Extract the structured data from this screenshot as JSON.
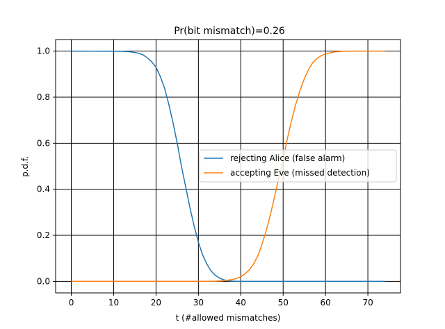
{
  "chart_data": {
    "type": "line",
    "title": "Pr(bit mismatch)=0.26",
    "xlabel": "t (#allowed mismatches)",
    "ylabel": "p.d.f.",
    "xlim": [
      -3.7,
      77.7
    ],
    "ylim": [
      -0.05,
      1.05
    ],
    "xticks": [
      0,
      10,
      20,
      30,
      40,
      50,
      60,
      70
    ],
    "yticks": [
      0.0,
      0.2,
      0.4,
      0.6,
      0.8,
      1.0
    ],
    "xtick_labels": [
      "0",
      "10",
      "20",
      "30",
      "40",
      "50",
      "60",
      "70"
    ],
    "ytick_labels": [
      "0.0",
      "0.2",
      "0.4",
      "0.6",
      "0.8",
      "1.0"
    ],
    "grid": true,
    "legend_position": "center-right",
    "series": [
      {
        "name": "rejecting Alice (false alarm)",
        "color": "#1f77b4",
        "x": [
          0,
          12,
          14,
          16,
          17,
          18,
          19,
          20,
          21,
          22,
          23,
          24,
          25,
          26,
          27,
          28,
          29,
          30,
          31,
          32,
          33,
          34,
          35,
          36,
          37,
          38,
          39,
          40,
          42,
          45,
          74
        ],
        "y": [
          1.0,
          0.999,
          0.997,
          0.99,
          0.983,
          0.97,
          0.953,
          0.93,
          0.89,
          0.84,
          0.77,
          0.69,
          0.6,
          0.5,
          0.41,
          0.32,
          0.24,
          0.17,
          0.115,
          0.075,
          0.045,
          0.026,
          0.014,
          0.007,
          0.003,
          0.0012,
          0.0005,
          0.0002,
          0.0,
          0.0,
          0.0
        ]
      },
      {
        "name": "accepting Eve (missed detection)",
        "color": "#ff7f0e",
        "x": [
          0,
          30,
          34,
          36,
          38,
          39,
          40,
          41,
          42,
          43,
          44,
          45,
          46,
          47,
          48,
          49,
          50,
          51,
          52,
          53,
          54,
          55,
          56,
          57,
          58,
          59,
          60,
          62,
          64,
          66,
          74
        ],
        "y": [
          0.0,
          0.0,
          0.001,
          0.003,
          0.008,
          0.013,
          0.02,
          0.033,
          0.05,
          0.075,
          0.11,
          0.16,
          0.22,
          0.29,
          0.37,
          0.45,
          0.53,
          0.62,
          0.7,
          0.77,
          0.83,
          0.88,
          0.92,
          0.95,
          0.968,
          0.98,
          0.988,
          0.996,
          0.999,
          1.0,
          1.0
        ]
      }
    ]
  }
}
